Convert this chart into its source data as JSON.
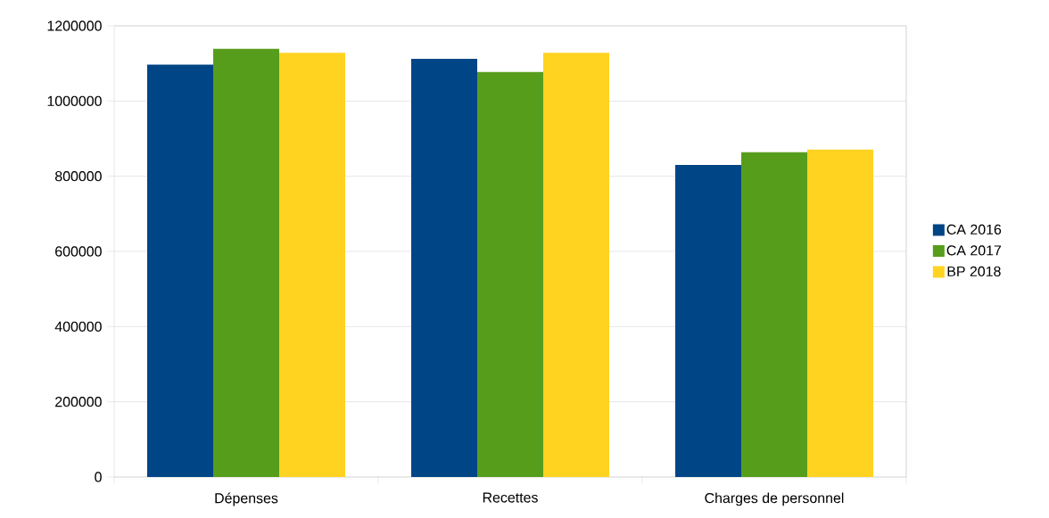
{
  "chart_data": {
    "type": "bar",
    "categories": [
      "Dépenses",
      "Recettes",
      "Charges de personnel"
    ],
    "series": [
      {
        "name": "CA 2016",
        "color": "#004586",
        "values": [
          1097000,
          1112000,
          830000
        ]
      },
      {
        "name": "CA 2017",
        "color": "#579d1c",
        "values": [
          1139000,
          1077000,
          864000
        ]
      },
      {
        "name": "BP 2018",
        "color": "#ffd320",
        "values": [
          1128000,
          1128000,
          871000
        ]
      }
    ],
    "ylim": [
      0,
      1200000
    ],
    "yticks": [
      0,
      200000,
      400000,
      600000,
      800000,
      1000000,
      1200000
    ],
    "grid": "y",
    "legend": "right"
  }
}
